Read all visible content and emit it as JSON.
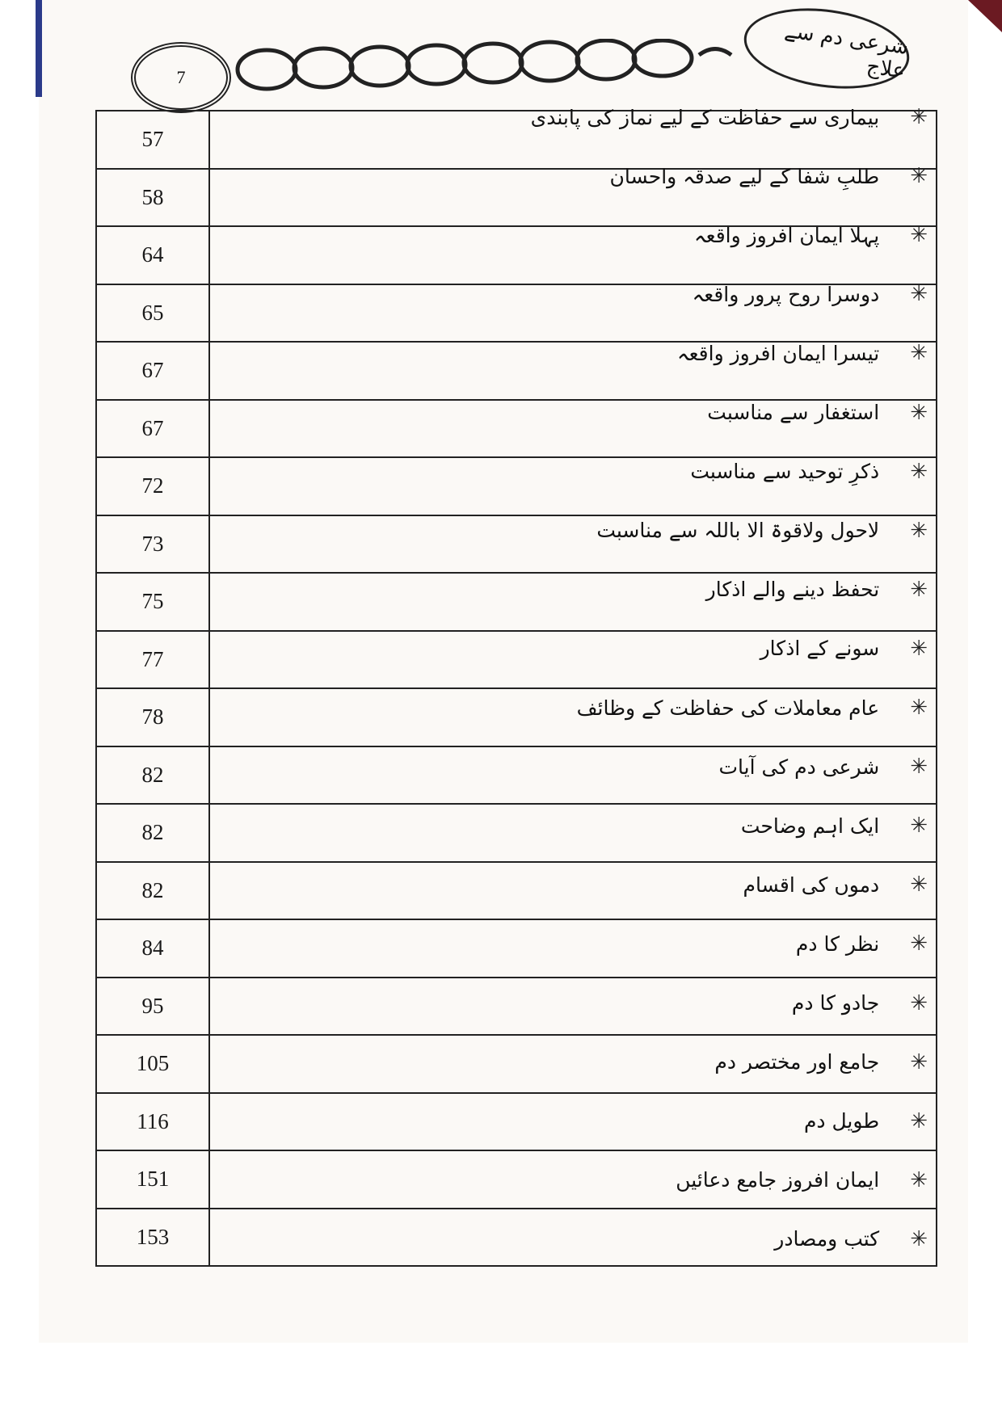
{
  "header": {
    "page_number": "7",
    "running_title": "شرعی دم سے علاج"
  },
  "entries": [
    {
      "title": "بیماری سے حفاظت کے لیے نماز کی پابندی",
      "page": "57"
    },
    {
      "title": "طلبِ شفا کے لیے صدقہ واحسان",
      "page": "58"
    },
    {
      "title": "پہلا ایمان افروز واقعہ",
      "page": "64"
    },
    {
      "title": "دوسرا روح پرور واقعہ",
      "page": "65"
    },
    {
      "title": "تیسرا ایمان افروز واقعہ",
      "page": "67"
    },
    {
      "title": "استغفار سے مناسبت",
      "page": "67"
    },
    {
      "title": "ذکرِ توحید سے مناسبت",
      "page": "72"
    },
    {
      "title": "لاحول ولاقوۃ الا باللہ سے مناسبت",
      "page": "73"
    },
    {
      "title": "تحفظ دینے والے اذکار",
      "page": "75"
    },
    {
      "title": "سونے کے اذکار",
      "page": "77"
    },
    {
      "title": "عام معاملات کی حفاظت کے وظائف",
      "page": "78"
    },
    {
      "title": "شرعی دم کی آیات",
      "page": "82"
    },
    {
      "title": "ایک اہم وضاحت",
      "page": "82"
    },
    {
      "title": "دموں کی اقسام",
      "page": "82"
    },
    {
      "title": "نظر کا دم",
      "page": "84"
    },
    {
      "title": "جادو کا دم",
      "page": "95"
    },
    {
      "title": "جامع اور مختصر دم",
      "page": "105"
    },
    {
      "title": "طویل دم",
      "page": "116"
    },
    {
      "title": "ایمان افروز جامع دعائیں",
      "page": "151"
    },
    {
      "title": "کتب ومصادر",
      "page": "153"
    }
  ],
  "bullet_icon": "asterisk-star-icon"
}
